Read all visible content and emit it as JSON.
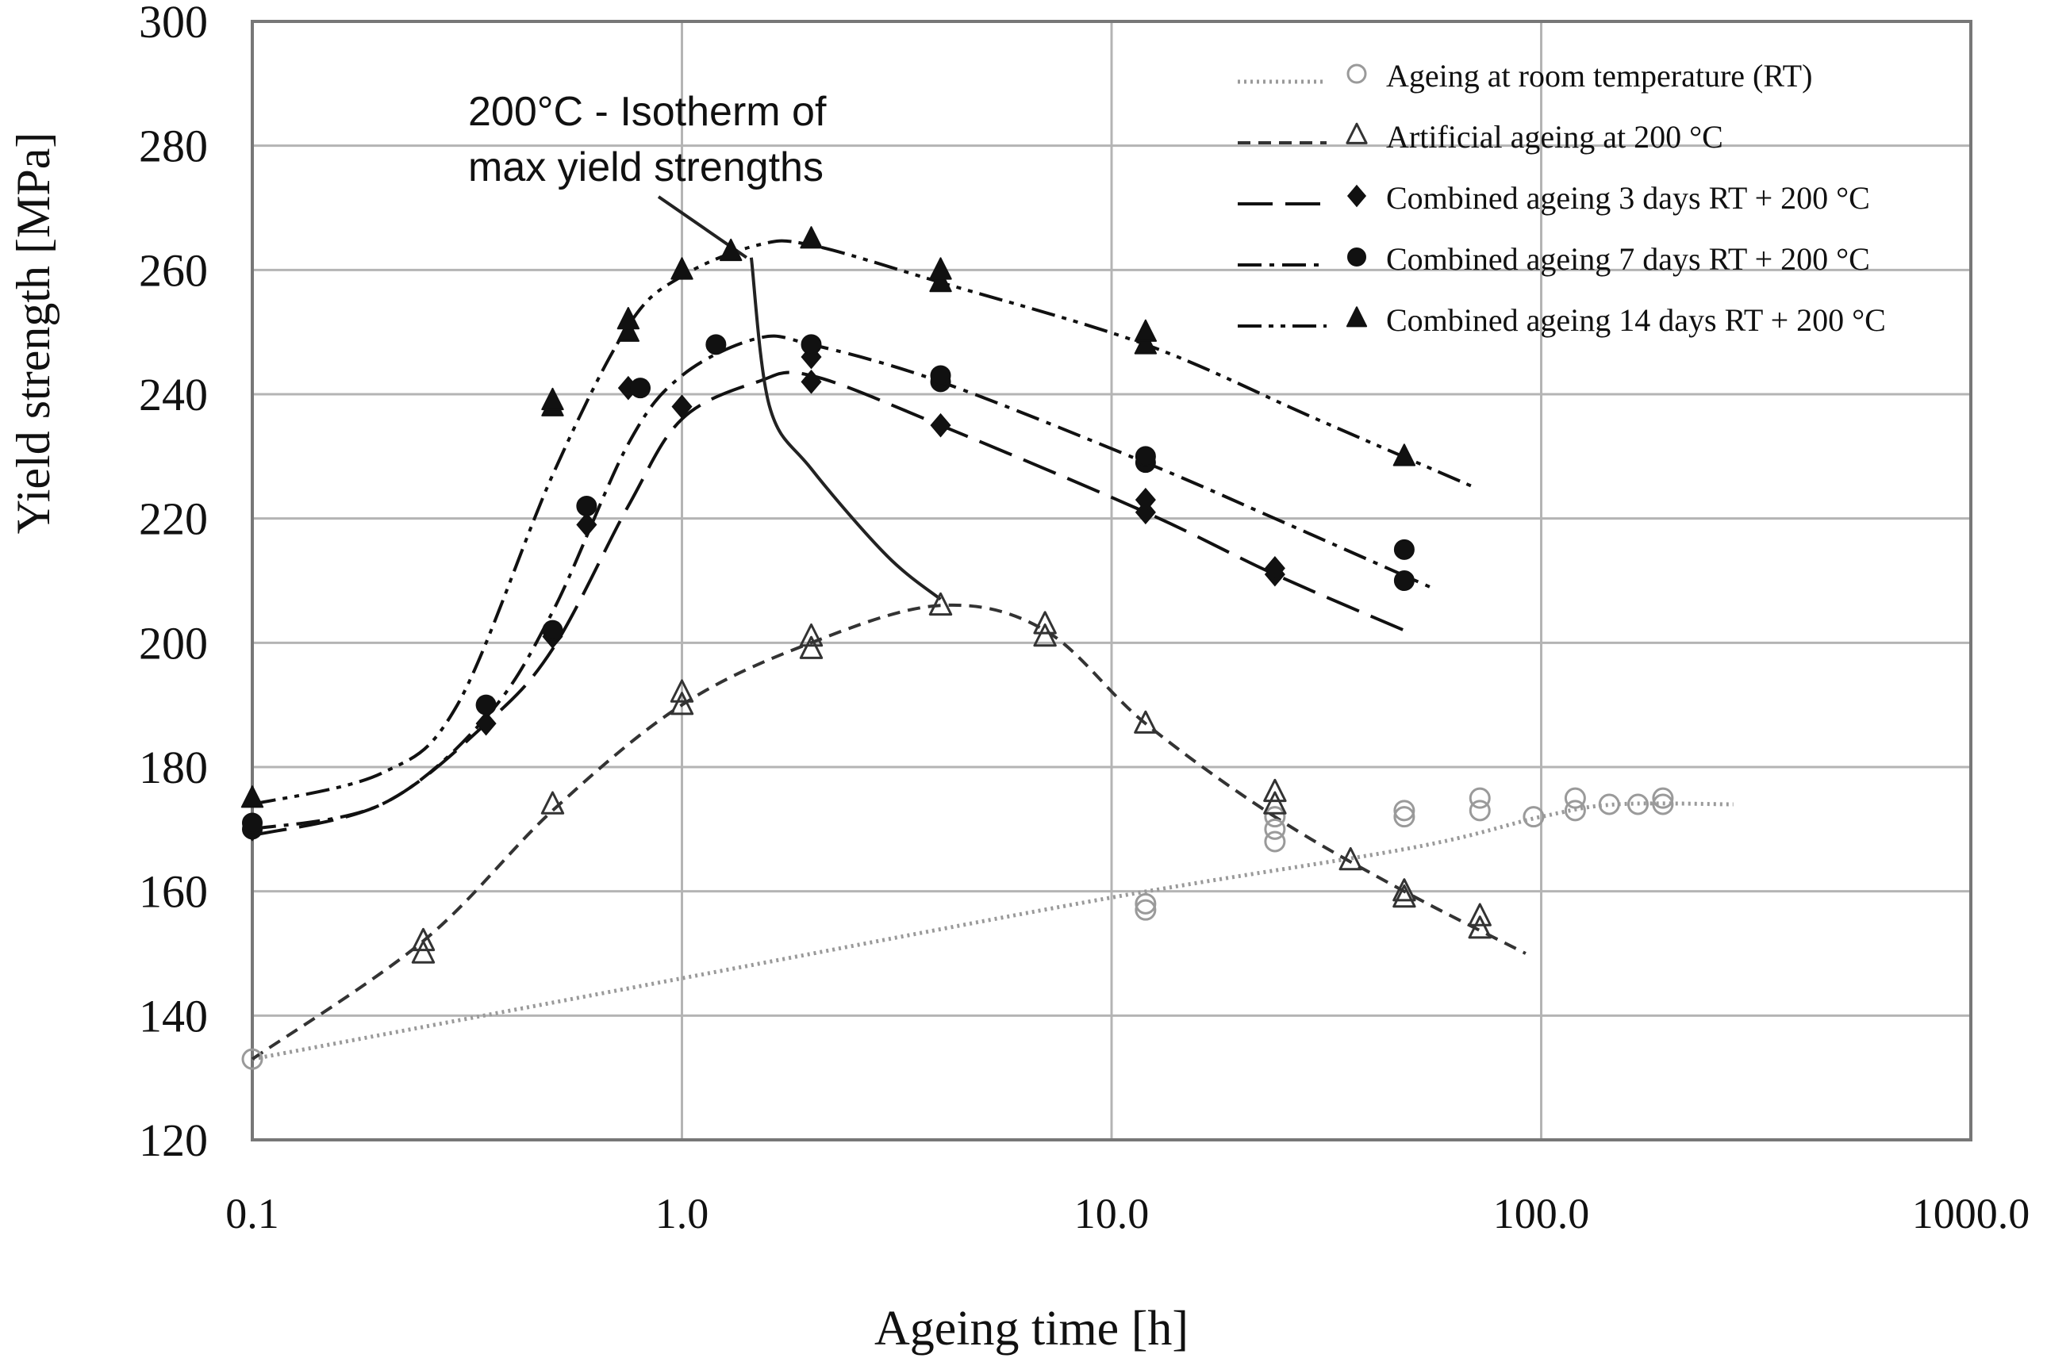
{
  "chart_data": {
    "type": "scatter",
    "title": "",
    "xlabel": "Ageing time [h]",
    "ylabel": "Yield strength [MPa]",
    "xscale": "log",
    "xlim": [
      0.1,
      1000
    ],
    "ylim": [
      120,
      300
    ],
    "xticks": [
      0.1,
      1,
      10,
      100,
      1000
    ],
    "xtick_labels": [
      "0.1",
      "1.0",
      "10.0",
      "100.0",
      "1000.0"
    ],
    "yticks": [
      120,
      140,
      160,
      180,
      200,
      220,
      240,
      260,
      280,
      300
    ],
    "ytick_labels": [
      "120",
      "140",
      "160",
      "180",
      "200",
      "220",
      "240",
      "260",
      "280",
      "300"
    ],
    "grid": true,
    "legend_position": "top-right",
    "annotation": {
      "lines": [
        "200°C - Isotherm of",
        "max yield strengths"
      ],
      "curve": [
        [
          1.45,
          262
        ],
        [
          1.6,
          238
        ],
        [
          2.0,
          228
        ],
        [
          3.0,
          214
        ],
        [
          4.0,
          207
        ]
      ]
    },
    "series": [
      {
        "name": "Ageing at room temperature (RT)",
        "marker": "circle-open",
        "dash": "dotted",
        "color": "#9a9a9a",
        "points": [
          [
            0.1,
            133
          ],
          [
            12,
            157
          ],
          [
            12,
            158
          ],
          [
            24,
            168
          ],
          [
            24,
            170
          ],
          [
            24,
            172
          ],
          [
            48,
            172
          ],
          [
            48,
            173
          ],
          [
            72,
            173
          ],
          [
            72,
            175
          ],
          [
            96,
            172
          ],
          [
            120,
            173
          ],
          [
            120,
            175
          ],
          [
            144,
            174
          ],
          [
            168,
            174
          ],
          [
            192,
            174
          ],
          [
            192,
            175
          ]
        ],
        "trend": [
          [
            0.1,
            133
          ],
          [
            1,
            146
          ],
          [
            10,
            159
          ],
          [
            50,
            167
          ],
          [
            100,
            172
          ],
          [
            150,
            174
          ],
          [
            280,
            174
          ]
        ]
      },
      {
        "name": "Artificial ageing at 200 °C",
        "marker": "triangle-open",
        "dash": "short-dash",
        "color": "#333333",
        "points": [
          [
            0.25,
            150
          ],
          [
            0.25,
            152
          ],
          [
            0.5,
            174
          ],
          [
            1,
            190
          ],
          [
            1,
            192
          ],
          [
            2,
            199
          ],
          [
            2,
            201
          ],
          [
            4,
            206
          ],
          [
            7,
            201
          ],
          [
            7,
            203
          ],
          [
            12,
            187
          ],
          [
            24,
            174
          ],
          [
            24,
            176
          ],
          [
            36,
            165
          ],
          [
            48,
            159
          ],
          [
            48,
            160
          ],
          [
            72,
            154
          ],
          [
            72,
            156
          ]
        ],
        "trend": [
          [
            0.1,
            133
          ],
          [
            0.25,
            152
          ],
          [
            0.5,
            173
          ],
          [
            1,
            190
          ],
          [
            2,
            200
          ],
          [
            4,
            206
          ],
          [
            7,
            202
          ],
          [
            12,
            187
          ],
          [
            24,
            172
          ],
          [
            48,
            160
          ],
          [
            92,
            150
          ]
        ]
      },
      {
        "name": "Combined ageing 3 days RT + 200 °C",
        "marker": "diamond-filled",
        "dash": "long-dash",
        "color": "#111111",
        "points": [
          [
            0.1,
            170
          ],
          [
            0.35,
            187
          ],
          [
            0.5,
            201
          ],
          [
            0.6,
            219
          ],
          [
            0.75,
            241
          ],
          [
            1,
            238
          ],
          [
            2,
            242
          ],
          [
            2,
            246
          ],
          [
            4,
            235
          ],
          [
            12,
            221
          ],
          [
            12,
            223
          ],
          [
            24,
            211
          ],
          [
            24,
            212
          ]
        ],
        "trend": [
          [
            0.1,
            169
          ],
          [
            0.2,
            174
          ],
          [
            0.35,
            187
          ],
          [
            0.5,
            199
          ],
          [
            0.75,
            222
          ],
          [
            1,
            236
          ],
          [
            1.5,
            242
          ],
          [
            2,
            243
          ],
          [
            4,
            235
          ],
          [
            12,
            221
          ],
          [
            24,
            211
          ],
          [
            48,
            202
          ]
        ]
      },
      {
        "name": "Combined ageing 7 days RT + 200 °C",
        "marker": "circle-filled",
        "dash": "dash-dot",
        "color": "#111111",
        "points": [
          [
            0.1,
            170
          ],
          [
            0.1,
            171
          ],
          [
            0.35,
            190
          ],
          [
            0.5,
            202
          ],
          [
            0.6,
            222
          ],
          [
            0.8,
            241
          ],
          [
            1.2,
            248
          ],
          [
            2,
            248
          ],
          [
            4,
            242
          ],
          [
            4,
            243
          ],
          [
            12,
            229
          ],
          [
            12,
            230
          ],
          [
            48,
            210
          ],
          [
            48,
            215
          ]
        ],
        "trend": [
          [
            0.1,
            170
          ],
          [
            0.2,
            174
          ],
          [
            0.35,
            188
          ],
          [
            0.5,
            205
          ],
          [
            0.75,
            232
          ],
          [
            1,
            243
          ],
          [
            1.5,
            249
          ],
          [
            2,
            248
          ],
          [
            4,
            242
          ],
          [
            12,
            229
          ],
          [
            24,
            220
          ],
          [
            55,
            209
          ]
        ]
      },
      {
        "name": "Combined ageing 14 days RT + 200 °C",
        "marker": "triangle-filled",
        "dash": "dash-dot-dot",
        "color": "#111111",
        "points": [
          [
            0.1,
            175
          ],
          [
            0.5,
            238
          ],
          [
            0.5,
            239
          ],
          [
            0.75,
            250
          ],
          [
            0.75,
            252
          ],
          [
            1,
            260
          ],
          [
            1.3,
            263
          ],
          [
            2,
            265
          ],
          [
            4,
            258
          ],
          [
            4,
            260
          ],
          [
            12,
            248
          ],
          [
            12,
            250
          ],
          [
            48,
            230
          ]
        ],
        "trend": [
          [
            0.1,
            174
          ],
          [
            0.2,
            179
          ],
          [
            0.3,
            190
          ],
          [
            0.5,
            227
          ],
          [
            0.75,
            251
          ],
          [
            1,
            259
          ],
          [
            1.5,
            264
          ],
          [
            2,
            264
          ],
          [
            4,
            258
          ],
          [
            12,
            248
          ],
          [
            30,
            236
          ],
          [
            70,
            225
          ]
        ]
      }
    ]
  }
}
